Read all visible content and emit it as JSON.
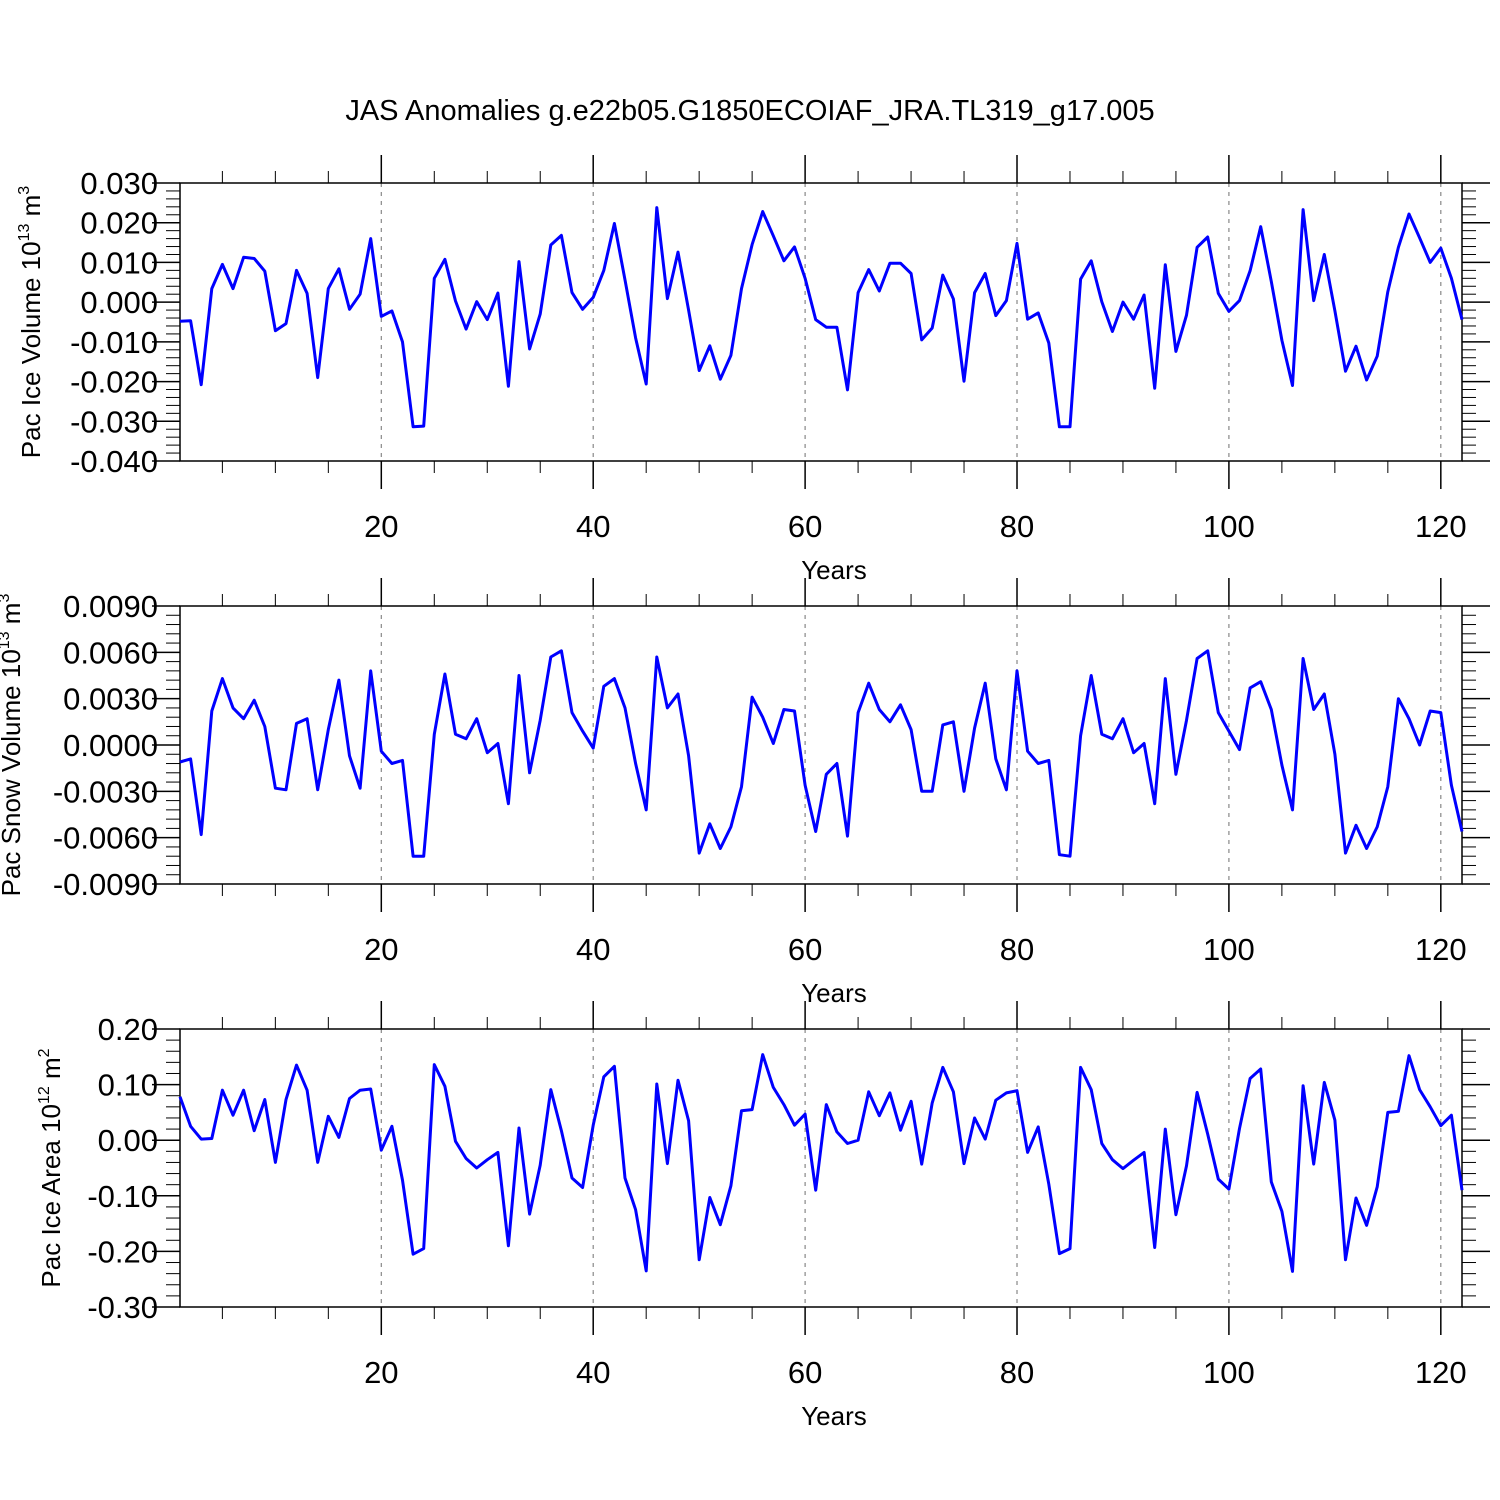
{
  "figure_title": "JAS Anomalies g.e22b05.G1850ECOIAF_JRA.TL319_g17.005",
  "colors": {
    "line": "#0000ff",
    "axis": "#000000",
    "grid": "#888888"
  },
  "chart_data": [
    {
      "type": "line",
      "xlabel": "Years",
      "ylabel_main": "Pac Ice Volume 10",
      "ylabel_exp": "13",
      "ylabel_unit": " m",
      "ylabel_unit_exp": "3",
      "xlim": [
        1,
        122
      ],
      "ylim": [
        -0.04,
        0.03
      ],
      "xticks": [
        20,
        40,
        60,
        80,
        100,
        120
      ],
      "xtick_labels": [
        "20",
        "40",
        "60",
        "80",
        "100",
        "120"
      ],
      "yticks": [
        -0.04,
        -0.03,
        -0.02,
        -0.01,
        0.0,
        0.01,
        0.02,
        0.03
      ],
      "ytick_labels": [
        "-0.040",
        "-0.030",
        "-0.020",
        "-0.010",
        "0.000",
        "0.010",
        "0.020",
        "0.030"
      ],
      "x": [
        1,
        2,
        3,
        4,
        5,
        6,
        7,
        8,
        9,
        10,
        11,
        12,
        13,
        14,
        15,
        16,
        17,
        18,
        19,
        20,
        21,
        22,
        23,
        24,
        25,
        26,
        27,
        28,
        29,
        30,
        31,
        32,
        33,
        34,
        35,
        36,
        37,
        38,
        39,
        40,
        41,
        42,
        43,
        44,
        45,
        46,
        47,
        48,
        49,
        50,
        51,
        52,
        53,
        54,
        55,
        56,
        57,
        58,
        59,
        60,
        61,
        62,
        63,
        64,
        65,
        66,
        67,
        68,
        69,
        70,
        71,
        72,
        73,
        74,
        75,
        76,
        77,
        78,
        79,
        80,
        81,
        82,
        83,
        84,
        85,
        86,
        87,
        88,
        89,
        90,
        91,
        92,
        93,
        94,
        95,
        96,
        97,
        98,
        99,
        100,
        101,
        102,
        103,
        104,
        105,
        106,
        107,
        108,
        109,
        110,
        111,
        112,
        113,
        114,
        115,
        116,
        117,
        118,
        119,
        120,
        121,
        122
      ],
      "values": [
        -0.0048,
        -0.0047,
        -0.0208,
        0.0034,
        0.0095,
        0.0034,
        0.0113,
        0.011,
        0.0078,
        -0.0072,
        -0.0054,
        0.008,
        0.0022,
        -0.019,
        0.0034,
        0.0084,
        -0.0018,
        0.002,
        0.016,
        -0.0036,
        -0.0022,
        -0.01,
        -0.0314,
        -0.0312,
        0.006,
        0.0108,
        0.0003,
        -0.0068,
        0.0001,
        -0.0044,
        0.0023,
        -0.0212,
        0.0102,
        -0.0118,
        -0.003,
        0.0144,
        0.0168,
        0.0024,
        -0.0018,
        0.0012,
        0.008,
        0.0198,
        0.0056,
        -0.009,
        -0.0206,
        0.0238,
        0.0009,
        0.0126,
        -0.002,
        -0.0172,
        -0.011,
        -0.0194,
        -0.0134,
        0.0034,
        0.0145,
        0.0228,
        0.0167,
        0.0104,
        0.0139,
        0.006,
        -0.0044,
        -0.0063,
        -0.0063,
        -0.0221,
        0.0024,
        0.0082,
        0.0028,
        0.0098,
        0.0098,
        0.0072,
        -0.0095,
        -0.0065,
        0.0068,
        0.0008,
        -0.0199,
        0.0024,
        0.0072,
        -0.0034,
        0.0004,
        0.0148,
        -0.0043,
        -0.0027,
        -0.0103,
        -0.0314,
        -0.0314,
        0.0058,
        0.0104,
        0.0001,
        -0.0074,
        0.0,
        -0.0043,
        0.0018,
        -0.0217,
        0.0094,
        -0.0124,
        -0.0033,
        0.0138,
        0.0164,
        0.0022,
        -0.0023,
        0.0004,
        0.0079,
        0.019,
        0.0052,
        -0.0096,
        -0.021,
        0.0233,
        0.0004,
        0.012,
        -0.0022,
        -0.0174,
        -0.0111,
        -0.0196,
        -0.0136,
        0.0026,
        0.0138,
        0.0222,
        0.0162,
        0.01,
        0.0136,
        0.006,
        -0.0044
      ]
    },
    {
      "type": "line",
      "xlabel": "Years",
      "ylabel_main": "Pac Snow Volume 10",
      "ylabel_exp": "13",
      "ylabel_unit": " m",
      "ylabel_unit_exp": "3",
      "xlim": [
        1,
        122
      ],
      "ylim": [
        -0.009,
        0.009
      ],
      "xticks": [
        20,
        40,
        60,
        80,
        100,
        120
      ],
      "xtick_labels": [
        "20",
        "40",
        "60",
        "80",
        "100",
        "120"
      ],
      "yticks": [
        -0.009,
        -0.006,
        -0.003,
        0.0,
        0.003,
        0.006,
        0.009
      ],
      "ytick_labels": [
        "-0.0090",
        "-0.0060",
        "-0.0030",
        "0.0000",
        "0.0030",
        "0.0060",
        "0.0090"
      ],
      "x": [
        1,
        2,
        3,
        4,
        5,
        6,
        7,
        8,
        9,
        10,
        11,
        12,
        13,
        14,
        15,
        16,
        17,
        18,
        19,
        20,
        21,
        22,
        23,
        24,
        25,
        26,
        27,
        28,
        29,
        30,
        31,
        32,
        33,
        34,
        35,
        36,
        37,
        38,
        39,
        40,
        41,
        42,
        43,
        44,
        45,
        46,
        47,
        48,
        49,
        50,
        51,
        52,
        53,
        54,
        55,
        56,
        57,
        58,
        59,
        60,
        61,
        62,
        63,
        64,
        65,
        66,
        67,
        68,
        69,
        70,
        71,
        72,
        73,
        74,
        75,
        76,
        77,
        78,
        79,
        80,
        81,
        82,
        83,
        84,
        85,
        86,
        87,
        88,
        89,
        90,
        91,
        92,
        93,
        94,
        95,
        96,
        97,
        98,
        99,
        100,
        101,
        102,
        103,
        104,
        105,
        106,
        107,
        108,
        109,
        110,
        111,
        112,
        113,
        114,
        115,
        116,
        117,
        118,
        119,
        120,
        121,
        122
      ],
      "values": [
        -0.0011,
        -0.0009,
        -0.0058,
        0.0022,
        0.0043,
        0.0024,
        0.0017,
        0.0029,
        0.0012,
        -0.0028,
        -0.0029,
        0.0014,
        0.0017,
        -0.0029,
        0.001,
        0.0042,
        -0.0007,
        -0.0028,
        0.0048,
        -0.0004,
        -0.0012,
        -0.001,
        -0.0072,
        -0.0072,
        0.0007,
        0.0046,
        0.0007,
        0.0004,
        0.0017,
        -0.0005,
        0.0001,
        -0.0038,
        0.0045,
        -0.0018,
        0.0016,
        0.0057,
        0.0061,
        0.0021,
        0.0009,
        -0.0002,
        0.0038,
        0.0043,
        0.0024,
        -0.0012,
        -0.0042,
        0.0057,
        0.0024,
        0.0033,
        -0.0007,
        -0.007,
        -0.0051,
        -0.0067,
        -0.0053,
        -0.0027,
        0.0031,
        0.0018,
        0.0001,
        0.0023,
        0.0022,
        -0.0026,
        -0.0056,
        -0.0019,
        -0.0012,
        -0.0059,
        0.0021,
        0.004,
        0.0023,
        0.0015,
        0.0026,
        0.001,
        -0.003,
        -0.003,
        0.0013,
        0.0015,
        -0.003,
        0.0011,
        0.004,
        -0.0009,
        -0.0029,
        0.0048,
        -0.0004,
        -0.0012,
        -0.001,
        -0.0071,
        -0.0072,
        0.0006,
        0.0045,
        0.0007,
        0.0004,
        0.0017,
        -0.0005,
        0.0001,
        -0.0038,
        0.0043,
        -0.0019,
        0.0016,
        0.0056,
        0.0061,
        0.0021,
        0.0009,
        -0.0003,
        0.0037,
        0.0041,
        0.0023,
        -0.0013,
        -0.0042,
        0.0056,
        0.0023,
        0.0033,
        -0.0006,
        -0.007,
        -0.0052,
        -0.0067,
        -0.0053,
        -0.0027,
        0.003,
        0.0017,
        0.0,
        0.0022,
        0.0021,
        -0.0026,
        -0.0056
      ]
    },
    {
      "type": "line",
      "xlabel": "Years",
      "ylabel_main": "Pac Ice Area 10",
      "ylabel_exp": "12",
      "ylabel_unit": " m",
      "ylabel_unit_exp": "2",
      "xlim": [
        1,
        122
      ],
      "ylim": [
        -0.3,
        0.2
      ],
      "xticks": [
        20,
        40,
        60,
        80,
        100,
        120
      ],
      "xtick_labels": [
        "20",
        "40",
        "60",
        "80",
        "100",
        "120"
      ],
      "yticks": [
        -0.3,
        -0.2,
        -0.1,
        0.0,
        0.1,
        0.2
      ],
      "ytick_labels": [
        "-0.30",
        "-0.20",
        "-0.10",
        "0.00",
        "0.10",
        "0.20"
      ],
      "x": [
        1,
        2,
        3,
        4,
        5,
        6,
        7,
        8,
        9,
        10,
        11,
        12,
        13,
        14,
        15,
        16,
        17,
        18,
        19,
        20,
        21,
        22,
        23,
        24,
        25,
        26,
        27,
        28,
        29,
        30,
        31,
        32,
        33,
        34,
        35,
        36,
        37,
        38,
        39,
        40,
        41,
        42,
        43,
        44,
        45,
        46,
        47,
        48,
        49,
        50,
        51,
        52,
        53,
        54,
        55,
        56,
        57,
        58,
        59,
        60,
        61,
        62,
        63,
        64,
        65,
        66,
        67,
        68,
        69,
        70,
        71,
        72,
        73,
        74,
        75,
        76,
        77,
        78,
        79,
        80,
        81,
        82,
        83,
        84,
        85,
        86,
        87,
        88,
        89,
        90,
        91,
        92,
        93,
        94,
        95,
        96,
        97,
        98,
        99,
        100,
        101,
        102,
        103,
        104,
        105,
        106,
        107,
        108,
        109,
        110,
        111,
        112,
        113,
        114,
        115,
        116,
        117,
        118,
        119,
        120,
        121,
        122
      ],
      "values": [
        0.078,
        0.025,
        0.002,
        0.003,
        0.09,
        0.045,
        0.09,
        0.017,
        0.073,
        -0.04,
        0.073,
        0.135,
        0.09,
        -0.04,
        0.043,
        0.005,
        0.075,
        0.09,
        0.092,
        -0.018,
        0.025,
        -0.072,
        -0.205,
        -0.195,
        0.136,
        0.097,
        -0.002,
        -0.033,
        -0.05,
        -0.035,
        -0.022,
        -0.19,
        0.022,
        -0.133,
        -0.045,
        0.091,
        0.017,
        -0.068,
        -0.085,
        0.027,
        0.114,
        0.133,
        -0.068,
        -0.125,
        -0.235,
        0.101,
        -0.042,
        0.108,
        0.035,
        -0.215,
        -0.103,
        -0.152,
        -0.082,
        0.053,
        0.055,
        0.154,
        0.095,
        0.064,
        0.027,
        0.047,
        -0.09,
        0.064,
        0.015,
        -0.006,
        0.0,
        0.087,
        0.044,
        0.085,
        0.018,
        0.07,
        -0.043,
        0.067,
        0.131,
        0.087,
        -0.042,
        0.04,
        0.002,
        0.072,
        0.085,
        0.089,
        -0.022,
        0.024,
        -0.079,
        -0.204,
        -0.195,
        0.131,
        0.091,
        -0.006,
        -0.035,
        -0.051,
        -0.036,
        -0.022,
        -0.193,
        0.02,
        -0.134,
        -0.046,
        0.086,
        0.011,
        -0.07,
        -0.088,
        0.021,
        0.111,
        0.128,
        -0.075,
        -0.128,
        -0.236,
        0.098,
        -0.043,
        0.104,
        0.036,
        -0.215,
        -0.104,
        -0.153,
        -0.084,
        0.05,
        0.052,
        0.152,
        0.091,
        0.06,
        0.026,
        0.045,
        -0.09
      ]
    }
  ]
}
